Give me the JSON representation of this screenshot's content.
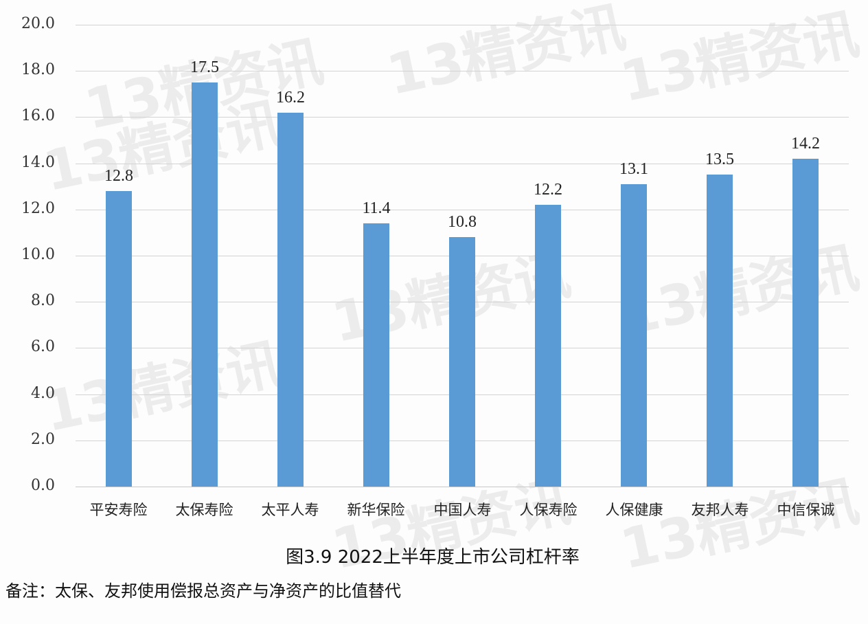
{
  "chart_data": {
    "type": "bar",
    "title": "图3.9  2022上半年度上市公司杠杆率",
    "note": "备注：太保、友邦使用偿报总资产与净资产的比值替代",
    "xlabel": "",
    "ylabel": "",
    "ylim": [
      0,
      20
    ],
    "yticks": [
      "0.0",
      "2.0",
      "4.0",
      "6.0",
      "8.0",
      "10.0",
      "12.0",
      "14.0",
      "16.0",
      "18.0",
      "20.0"
    ],
    "grid": true,
    "legend": null,
    "categories": [
      "平安寿险",
      "太保寿险",
      "太平人寿",
      "新华保险",
      "中国人寿",
      "人保寿险",
      "人保健康",
      "友邦人寿",
      "中信保诚"
    ],
    "values": [
      12.8,
      17.5,
      16.2,
      11.4,
      10.8,
      12.2,
      13.1,
      13.5,
      14.2
    ],
    "value_labels": [
      "12.8",
      "17.5",
      "16.2",
      "11.4",
      "10.8",
      "12.2",
      "13.1",
      "13.5",
      "14.2"
    ],
    "bar_color": "#5b9bd5"
  },
  "watermark": "13精资讯"
}
